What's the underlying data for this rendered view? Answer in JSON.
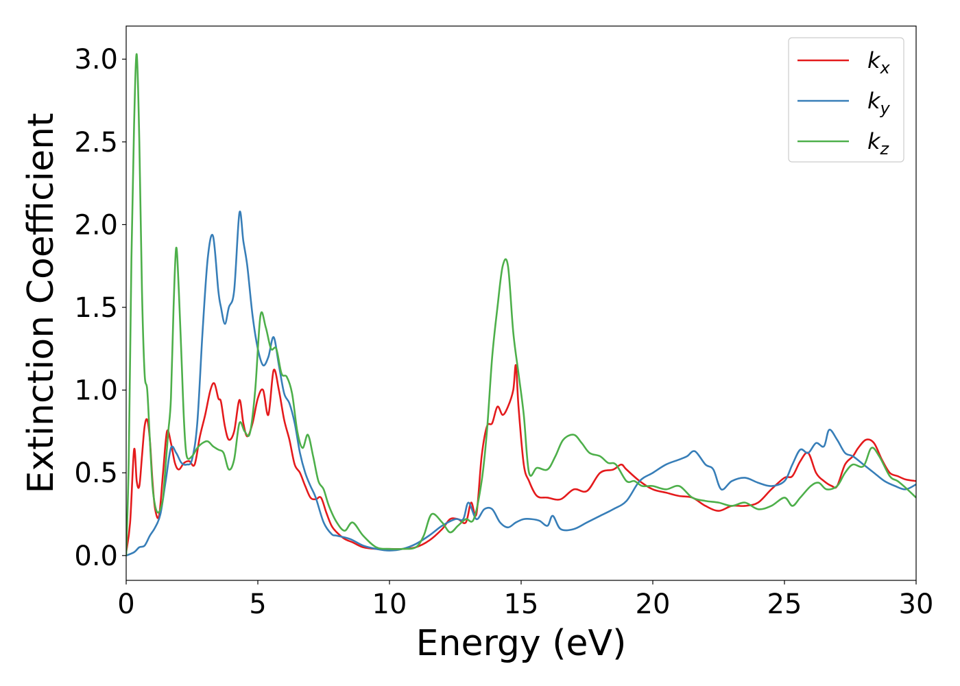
{
  "chart_data": {
    "type": "line",
    "xlabel": "Energy (eV)",
    "ylabel": "Extinction Coefficient",
    "xlim": [
      0,
      30
    ],
    "ylim": [
      -0.15,
      3.2
    ],
    "xticks": [
      0,
      5,
      10,
      15,
      20,
      25,
      30
    ],
    "xtick_labels": [
      "0",
      "5",
      "10",
      "15",
      "20",
      "25",
      "30"
    ],
    "yticks": [
      0.0,
      0.5,
      1.0,
      1.5,
      2.0,
      2.5,
      3.0
    ],
    "ytick_labels": [
      "0.0",
      "0.5",
      "1.0",
      "1.5",
      "2.0",
      "2.5",
      "3.0"
    ],
    "grid": false,
    "legend_position": "top-right",
    "series": [
      {
        "name": "k",
        "subscript": "x",
        "color": "#e41a1c",
        "x": [
          0,
          0.15,
          0.3,
          0.4,
          0.5,
          0.6,
          0.7,
          0.8,
          0.9,
          1.0,
          1.1,
          1.25,
          1.4,
          1.55,
          1.7,
          1.85,
          2.0,
          2.2,
          2.4,
          2.6,
          2.8,
          3.0,
          3.2,
          3.35,
          3.5,
          3.6,
          3.75,
          3.9,
          4.1,
          4.3,
          4.45,
          4.6,
          4.8,
          5.0,
          5.2,
          5.4,
          5.6,
          5.8,
          6.0,
          6.2,
          6.4,
          6.6,
          6.8,
          7.0,
          7.2,
          7.4,
          7.6,
          7.8,
          8.0,
          8.3,
          8.6,
          9.0,
          9.5,
          10.0,
          10.5,
          11.0,
          11.5,
          12.0,
          12.3,
          12.6,
          12.9,
          13.1,
          13.3,
          13.5,
          13.7,
          13.9,
          14.1,
          14.3,
          14.5,
          14.7,
          14.8,
          14.9,
          15.1,
          15.3,
          15.6,
          16.0,
          16.5,
          17.0,
          17.5,
          18.0,
          18.5,
          18.8,
          19.0,
          19.5,
          20.0,
          20.5,
          21.0,
          21.5,
          22.0,
          22.5,
          23.0,
          23.5,
          24.0,
          24.5,
          25.0,
          25.3,
          25.6,
          25.9,
          26.2,
          26.5,
          26.8,
          27.0,
          27.3,
          27.6,
          27.8,
          28.1,
          28.4,
          28.7,
          29.0,
          29.3,
          29.6,
          30.0
        ],
        "y": [
          0.02,
          0.2,
          0.64,
          0.45,
          0.42,
          0.6,
          0.78,
          0.82,
          0.7,
          0.45,
          0.28,
          0.24,
          0.5,
          0.75,
          0.68,
          0.56,
          0.52,
          0.56,
          0.57,
          0.55,
          0.72,
          0.85,
          1.0,
          1.04,
          0.95,
          0.93,
          0.78,
          0.7,
          0.75,
          0.94,
          0.8,
          0.72,
          0.8,
          0.95,
          1.0,
          0.85,
          1.12,
          1.0,
          0.82,
          0.7,
          0.55,
          0.5,
          0.42,
          0.35,
          0.34,
          0.35,
          0.26,
          0.18,
          0.14,
          0.1,
          0.08,
          0.05,
          0.04,
          0.04,
          0.04,
          0.05,
          0.09,
          0.16,
          0.22,
          0.22,
          0.2,
          0.32,
          0.25,
          0.6,
          0.78,
          0.8,
          0.9,
          0.85,
          0.9,
          1.0,
          1.15,
          0.9,
          0.55,
          0.45,
          0.36,
          0.35,
          0.34,
          0.4,
          0.39,
          0.5,
          0.52,
          0.55,
          0.52,
          0.45,
          0.4,
          0.38,
          0.36,
          0.35,
          0.3,
          0.27,
          0.3,
          0.3,
          0.32,
          0.4,
          0.47,
          0.48,
          0.57,
          0.62,
          0.5,
          0.45,
          0.42,
          0.42,
          0.55,
          0.6,
          0.65,
          0.7,
          0.68,
          0.58,
          0.5,
          0.48,
          0.46,
          0.45
        ]
      },
      {
        "name": "k",
        "subscript": "y",
        "color": "#377eb8",
        "x": [
          0,
          0.3,
          0.5,
          0.7,
          0.9,
          1.1,
          1.3,
          1.5,
          1.7,
          1.9,
          2.1,
          2.3,
          2.5,
          2.7,
          2.9,
          3.1,
          3.3,
          3.5,
          3.6,
          3.75,
          3.9,
          4.1,
          4.3,
          4.45,
          4.6,
          4.8,
          5.0,
          5.2,
          5.4,
          5.6,
          5.8,
          6.0,
          6.2,
          6.4,
          6.6,
          6.8,
          7.0,
          7.2,
          7.5,
          7.8,
          8.0,
          8.5,
          9.0,
          9.5,
          10.0,
          10.5,
          11.0,
          11.5,
          12.0,
          12.5,
          12.8,
          13.0,
          13.3,
          13.6,
          13.9,
          14.2,
          14.5,
          14.8,
          15.1,
          15.4,
          15.7,
          16.0,
          16.2,
          16.5,
          17.0,
          17.5,
          18.0,
          18.5,
          19.0,
          19.5,
          20.0,
          20.5,
          21.0,
          21.3,
          21.6,
          22.0,
          22.3,
          22.6,
          23.0,
          23.5,
          24.0,
          24.5,
          25.0,
          25.3,
          25.6,
          25.9,
          26.2,
          26.5,
          26.7,
          27.0,
          27.3,
          27.6,
          28.0,
          28.4,
          28.8,
          29.2,
          29.6,
          30.0
        ],
        "y": [
          0.0,
          0.02,
          0.05,
          0.06,
          0.12,
          0.17,
          0.25,
          0.45,
          0.65,
          0.62,
          0.56,
          0.55,
          0.58,
          0.8,
          1.35,
          1.8,
          1.93,
          1.6,
          1.5,
          1.4,
          1.5,
          1.6,
          2.07,
          1.9,
          1.75,
          1.45,
          1.25,
          1.15,
          1.2,
          1.32,
          1.15,
          0.98,
          0.92,
          0.8,
          0.62,
          0.5,
          0.42,
          0.35,
          0.2,
          0.13,
          0.12,
          0.1,
          0.06,
          0.04,
          0.03,
          0.04,
          0.07,
          0.12,
          0.18,
          0.22,
          0.22,
          0.32,
          0.22,
          0.28,
          0.28,
          0.2,
          0.17,
          0.2,
          0.22,
          0.22,
          0.21,
          0.18,
          0.24,
          0.16,
          0.16,
          0.2,
          0.24,
          0.28,
          0.33,
          0.45,
          0.5,
          0.55,
          0.58,
          0.6,
          0.63,
          0.55,
          0.52,
          0.4,
          0.45,
          0.47,
          0.44,
          0.42,
          0.45,
          0.55,
          0.64,
          0.62,
          0.68,
          0.66,
          0.76,
          0.7,
          0.62,
          0.6,
          0.55,
          0.5,
          0.45,
          0.42,
          0.4,
          0.43
        ]
      },
      {
        "name": "k",
        "subscript": "z",
        "color": "#4daf4a",
        "x": [
          0,
          0.1,
          0.2,
          0.3,
          0.4,
          0.5,
          0.6,
          0.7,
          0.8,
          0.9,
          1.0,
          1.1,
          1.2,
          1.3,
          1.4,
          1.5,
          1.6,
          1.7,
          1.8,
          1.9,
          2.0,
          2.1,
          2.2,
          2.3,
          2.5,
          2.7,
          2.9,
          3.1,
          3.3,
          3.5,
          3.7,
          3.9,
          4.1,
          4.3,
          4.5,
          4.7,
          4.9,
          5.1,
          5.3,
          5.5,
          5.7,
          5.9,
          6.1,
          6.3,
          6.5,
          6.7,
          6.9,
          7.1,
          7.3,
          7.5,
          7.7,
          8.0,
          8.3,
          8.6,
          9.0,
          9.5,
          10.0,
          10.5,
          11.0,
          11.3,
          11.6,
          12.0,
          12.3,
          12.6,
          12.9,
          13.2,
          13.5,
          13.7,
          13.9,
          14.1,
          14.3,
          14.5,
          14.7,
          14.9,
          15.1,
          15.3,
          15.6,
          16.0,
          16.3,
          16.6,
          17.0,
          17.3,
          17.6,
          18.0,
          18.3,
          18.6,
          19.0,
          19.3,
          19.6,
          20.0,
          20.5,
          21.0,
          21.5,
          22.0,
          22.5,
          23.0,
          23.5,
          24.0,
          24.5,
          25.0,
          25.3,
          25.6,
          26.0,
          26.3,
          26.6,
          27.0,
          27.3,
          27.6,
          28.0,
          28.3,
          28.6,
          29.0,
          29.3,
          29.6,
          30.0
        ],
        "y": [
          0.0,
          0.6,
          1.8,
          2.6,
          3.03,
          2.5,
          1.6,
          1.1,
          1.0,
          0.7,
          0.42,
          0.3,
          0.26,
          0.28,
          0.35,
          0.55,
          0.75,
          0.95,
          1.5,
          1.86,
          1.6,
          1.2,
          0.8,
          0.6,
          0.6,
          0.65,
          0.68,
          0.69,
          0.66,
          0.64,
          0.62,
          0.52,
          0.58,
          0.8,
          0.75,
          0.74,
          1.0,
          1.45,
          1.38,
          1.25,
          1.25,
          1.1,
          1.08,
          0.98,
          0.75,
          0.65,
          0.73,
          0.6,
          0.45,
          0.4,
          0.3,
          0.2,
          0.15,
          0.2,
          0.12,
          0.05,
          0.04,
          0.04,
          0.05,
          0.12,
          0.25,
          0.2,
          0.14,
          0.18,
          0.22,
          0.22,
          0.45,
          0.75,
          1.2,
          1.5,
          1.75,
          1.75,
          1.35,
          1.1,
          0.85,
          0.5,
          0.53,
          0.52,
          0.6,
          0.7,
          0.73,
          0.68,
          0.62,
          0.6,
          0.56,
          0.55,
          0.45,
          0.45,
          0.42,
          0.42,
          0.4,
          0.42,
          0.35,
          0.33,
          0.32,
          0.3,
          0.32,
          0.28,
          0.3,
          0.35,
          0.3,
          0.35,
          0.42,
          0.44,
          0.4,
          0.42,
          0.5,
          0.55,
          0.54,
          0.65,
          0.6,
          0.48,
          0.45,
          0.41,
          0.35
        ]
      }
    ]
  }
}
